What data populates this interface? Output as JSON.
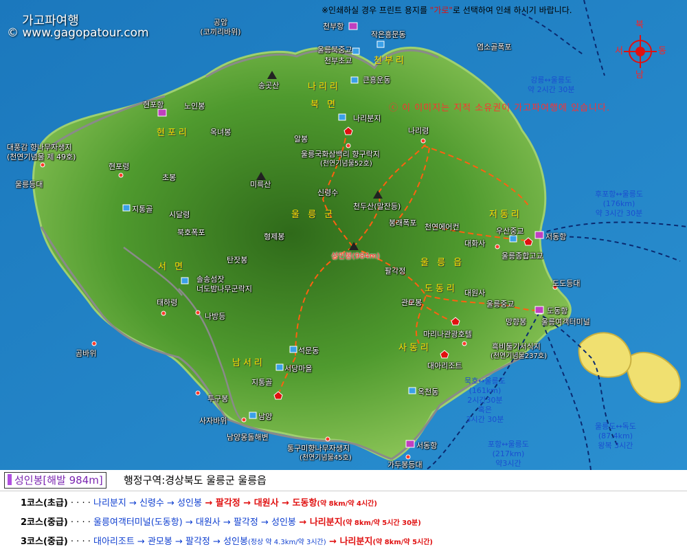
{
  "brand": {
    "title": "가고파여행",
    "site": "© www.gagopatour.com"
  },
  "notice": {
    "prefix": "※인쇄하실 경우 프린트 용지를 ",
    "quoted": "\"가로\"",
    "suffix": "로 선택하여 인쇄 하시기 바랍니다."
  },
  "copyright": "ⓒ 이 이미지는 지적 소유권이 가고파여행에 있습니다.",
  "compass": {
    "north": "북",
    "south": "남",
    "west": "서",
    "east": "동"
  },
  "regions": {
    "narili": "나리리",
    "bukmyeon": "북 면",
    "cheonburi": "천부리",
    "hyeonpori": "현포리",
    "ulleunggun": "울 릉 군",
    "seomyeon": "서 면",
    "jeodongri": "저동리",
    "ulleungeup": "울 릉 읍",
    "dodongri": "도동리",
    "sadongri": "사동리",
    "namseori": "남서리"
  },
  "places": {
    "gongam": "공암",
    "gongam_sub": "(코끼리바위)",
    "cheonbuhang": "천부항",
    "jakeunheungdong": "작은흥문동",
    "ulleungbukjung": "울릉북중교",
    "cheonbucho": "천부초교",
    "songgotsan": "송곳산",
    "keunheungdong": "큰흥운동",
    "yeomsogolpo": "염소골폭포",
    "hyeonpohang": "현포항",
    "noinbong": "노인봉",
    "okneobong": "옥녀봉",
    "narbunji": "나리분지",
    "albong": "알봉",
    "daepunggam": "대풍감 향나무자생지",
    "daepunggam_sub": "(천연기념물 제 49호)",
    "hyangnamu52": "울릉국화삼백리 향구락지",
    "hyangnamu52_sub": "(천연기념물52호)",
    "narireong": "나리령",
    "hyeonporyeong": "현포령",
    "chobong": "초봉",
    "misan": "미륵산",
    "ulleungdeungdae": "울릉등대",
    "sinryeongsu": "신령수",
    "cheondusan": "천두산(말잔등)",
    "tonggumi_t": "지통골",
    "sidalryeong": "시달령",
    "bongraepokpo": "봉래폭포",
    "cheonyeoneeokeon": "천연에어컨",
    "usanjung": "우산중교",
    "jeodonghang": "저동항",
    "bukhopokpo": "북호폭포",
    "hyeongjebong": "형제봉",
    "daehwasa": "대화사",
    "seonginbong": "성인봉(984m)",
    "ulleunghigh": "울릉종합고교",
    "tanjatbong": "탄잣봉",
    "palgakjeong": "팔각정",
    "songseomseom": "솔송섬잣",
    "neodobam": "너도밤나무군락지",
    "dodongdeungdae": "도도등대",
    "taeharyeong": "태하령",
    "gwanmobong": "관모봉",
    "daewonsa": "대원사",
    "ulleungjung": "울릉중교",
    "dodonghang": "도동항",
    "nabadeung": "나방등",
    "manghyangbong": "망향봉",
    "terminal": "울릉여객터미널",
    "marinahotel": "마리나관광호텔",
    "heukbi": "흑비둘기서식지",
    "heukbi_sub": "(천연기념물237호)",
    "gombawi": "곰바위",
    "seokmundong": "석문동",
    "daeari": "대아리조트",
    "seodangmaeul": "서당마을",
    "jitonggol": "지통골",
    "okcheondong": "옥천동",
    "tugubong": "투구봉",
    "namyang": "남양",
    "sajabawi": "사자바위",
    "namyangmong": "남양몽돌해변",
    "tonggumi": "통구미향나무자생지",
    "tonggumi_sub": "(천연기념물45호)",
    "seodonghang": "서동항",
    "gadubong": "가두봉등대"
  },
  "sea_routes": {
    "gangneung": [
      "강릉↔울릉도",
      "약 2시간 30분"
    ],
    "hupo": [
      "후포항↔울릉도",
      "(176km)",
      "약 3시간 30분"
    ],
    "mukho": [
      "묵호↔울릉도",
      "(161km)",
      "2시간30분",
      "혹은",
      "3시간 30분"
    ],
    "pohang": [
      "포항↔울릉도",
      "(217km)",
      "약3시간"
    ],
    "dokdo": [
      "울릉도↔독도",
      "(87.4km)",
      "왕복 3시간"
    ]
  },
  "info_bar": {
    "peak": "성인봉[해발 984m]",
    "admin": "행정구역:경상북도 울릉군 울릉읍"
  },
  "courses": [
    {
      "name": "1코스(초급)",
      "dots": " · · · · ",
      "segments": [
        {
          "t": "나리분지",
          "c": "b"
        },
        {
          "t": " → 신령수",
          "c": "b"
        },
        {
          "t": " → 성인봉",
          "c": "b"
        },
        {
          "t": " → 팔각정",
          "c": "r"
        },
        {
          "t": " → 대원사",
          "c": "r"
        },
        {
          "t": " → 도동항",
          "c": "r"
        }
      ],
      "note": "(약 8km/약 4시간)",
      "note_color": "r"
    },
    {
      "name": "2코스(중급)",
      "dots": " · · · · ",
      "segments": [
        {
          "t": "울릉여객터미널(도동항)",
          "c": "b"
        },
        {
          "t": " → 대원사",
          "c": "b"
        },
        {
          "t": " → 팔각정",
          "c": "b"
        },
        {
          "t": " → 성인봉",
          "c": "b"
        },
        {
          "t": " → 나리분지",
          "c": "r"
        }
      ],
      "note": "(약 8km/약 5시간 30분)",
      "note_color": "r"
    },
    {
      "name": "3코스(중급)",
      "dots": " · · · · ",
      "segments": [
        {
          "t": "대아리조트",
          "c": "b"
        },
        {
          "t": " → 관모봉",
          "c": "b"
        },
        {
          "t": " → 팔각정",
          "c": "b"
        },
        {
          "t": " → 성인봉",
          "c": "b"
        }
      ],
      "mid_note": "(정상 약 4.3km/약 3시간)",
      "tail": " → 나리분지",
      "note": "(약 8km/약 5시간)",
      "note_color": "r"
    }
  ],
  "colors": {
    "sea": "#1f82c4",
    "island": "#3f8f2a",
    "trail": "#ff5a00",
    "road": "#7a7a7a",
    "dokdo": "#f0e070"
  }
}
